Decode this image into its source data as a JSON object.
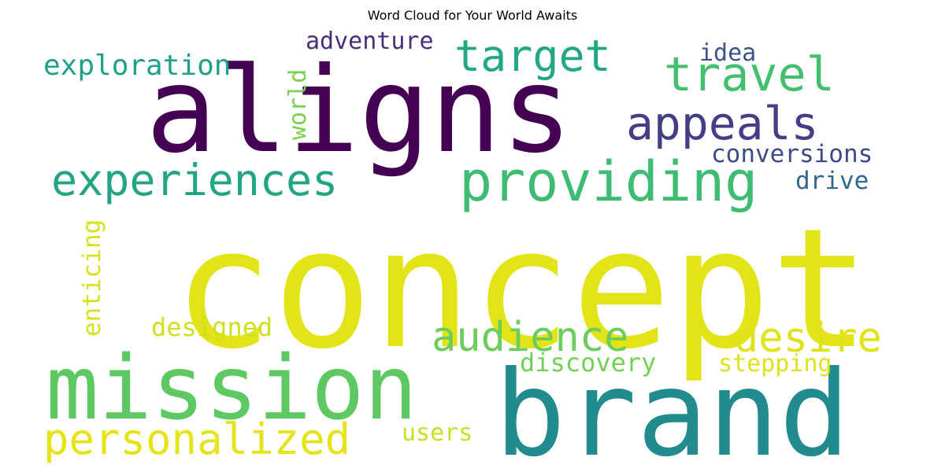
{
  "chart_data": {
    "type": "wordcloud",
    "title": "Word Cloud for Your World Awaits",
    "words": [
      {
        "text": "concept",
        "color": "#e2e418"
      },
      {
        "text": "aligns",
        "color": "#440154"
      },
      {
        "text": "brand",
        "color": "#228b8d"
      },
      {
        "text": "mission",
        "color": "#5ec962"
      },
      {
        "text": "providing",
        "color": "#3fbc73"
      },
      {
        "text": "experiences",
        "color": "#21a585"
      },
      {
        "text": "personalized",
        "color": "#e5e419"
      },
      {
        "text": "appeals",
        "color": "#433e85"
      },
      {
        "text": "target",
        "color": "#22a884"
      },
      {
        "text": "travel",
        "color": "#44bf70"
      },
      {
        "text": "audience",
        "color": "#6ccd5a"
      },
      {
        "text": "desire",
        "color": "#e0e21a"
      },
      {
        "text": "exploration",
        "color": "#1fa088"
      },
      {
        "text": "adventure",
        "color": "#472d7b"
      },
      {
        "text": "idea",
        "color": "#3b528b"
      },
      {
        "text": "world",
        "color": "#7ad151"
      },
      {
        "text": "conversions",
        "color": "#3e4989"
      },
      {
        "text": "drive",
        "color": "#31688e"
      },
      {
        "text": "enticing",
        "color": "#d8e219"
      },
      {
        "text": "designed",
        "color": "#d0e11c"
      },
      {
        "text": "discovery",
        "color": "#73d056"
      },
      {
        "text": "stepping",
        "color": "#dde318"
      },
      {
        "text": "users",
        "color": "#c8e020"
      }
    ]
  }
}
